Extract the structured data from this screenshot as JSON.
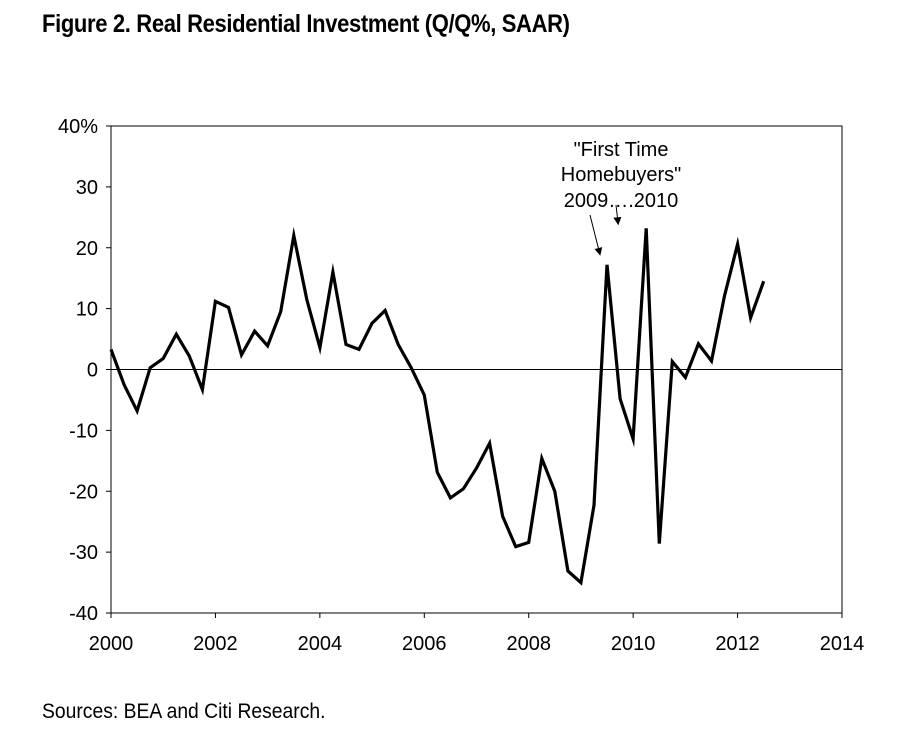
{
  "figure": {
    "title": "Figure 2. Real Residential Investment (Q/Q%, SAAR)",
    "source": "Sources: BEA and Citi Research."
  },
  "chart_data": {
    "type": "line",
    "title": "Figure 2. Real Residential Investment (Q/Q%, SAAR)",
    "xlabel": "",
    "ylabel": "",
    "xlim": [
      2000,
      2014
    ],
    "ylim": [
      -40,
      40
    ],
    "x_ticks": [
      "2000",
      "2002",
      "2004",
      "2006",
      "2008",
      "2010",
      "2012",
      "2014"
    ],
    "y_ticks": [
      "-40",
      "-30",
      "-20",
      "-10",
      "0",
      "10",
      "20",
      "30",
      "40%"
    ],
    "grid": false,
    "zero_line": true,
    "annotation": {
      "lines": [
        "\"First Time",
        "Homebuyers\"",
        "2009….2010"
      ],
      "arrow_targets": [
        [
          2009.5,
          17.2
        ],
        [
          2010.25,
          23.2
        ]
      ]
    },
    "series": [
      {
        "x": [
          2000.0,
          2000.25,
          2000.5,
          2000.75,
          2001.0,
          2001.25,
          2001.5,
          2001.75,
          2002.0,
          2002.25,
          2002.5,
          2002.75,
          2003.0,
          2003.25,
          2003.5,
          2003.75,
          2004.0,
          2004.25,
          2004.5,
          2004.75,
          2005.0,
          2005.25,
          2005.5,
          2005.75,
          2006.0,
          2006.25,
          2006.5,
          2006.75,
          2007.0,
          2007.25,
          2007.5,
          2007.75,
          2008.0,
          2008.25,
          2008.5,
          2008.75,
          2009.0,
          2009.25,
          2009.5,
          2009.75,
          2010.0,
          2010.25,
          2010.5,
          2010.75,
          2011.0,
          2011.25,
          2011.5,
          2011.75,
          2012.0,
          2012.25,
          2012.5
        ],
        "values": [
          3.3,
          -2.5,
          -6.8,
          0.3,
          1.8,
          5.8,
          2.2,
          -3.3,
          11.2,
          10.2,
          2.4,
          6.3,
          3.9,
          9.5,
          22.0,
          11.5,
          3.6,
          16.0,
          4.1,
          3.3,
          7.6,
          9.7,
          4.1,
          0.3,
          -4.2,
          -16.9,
          -21.1,
          -19.6,
          -16.2,
          -12.1,
          -24.1,
          -29.1,
          -28.4,
          -14.6,
          -20.0,
          -33.1,
          -35.0,
          -22.3,
          17.2,
          -4.8,
          -11.4,
          23.2,
          -28.6,
          1.3,
          -1.3,
          4.2,
          1.4,
          12.1,
          20.6,
          8.5,
          14.5
        ]
      }
    ]
  }
}
